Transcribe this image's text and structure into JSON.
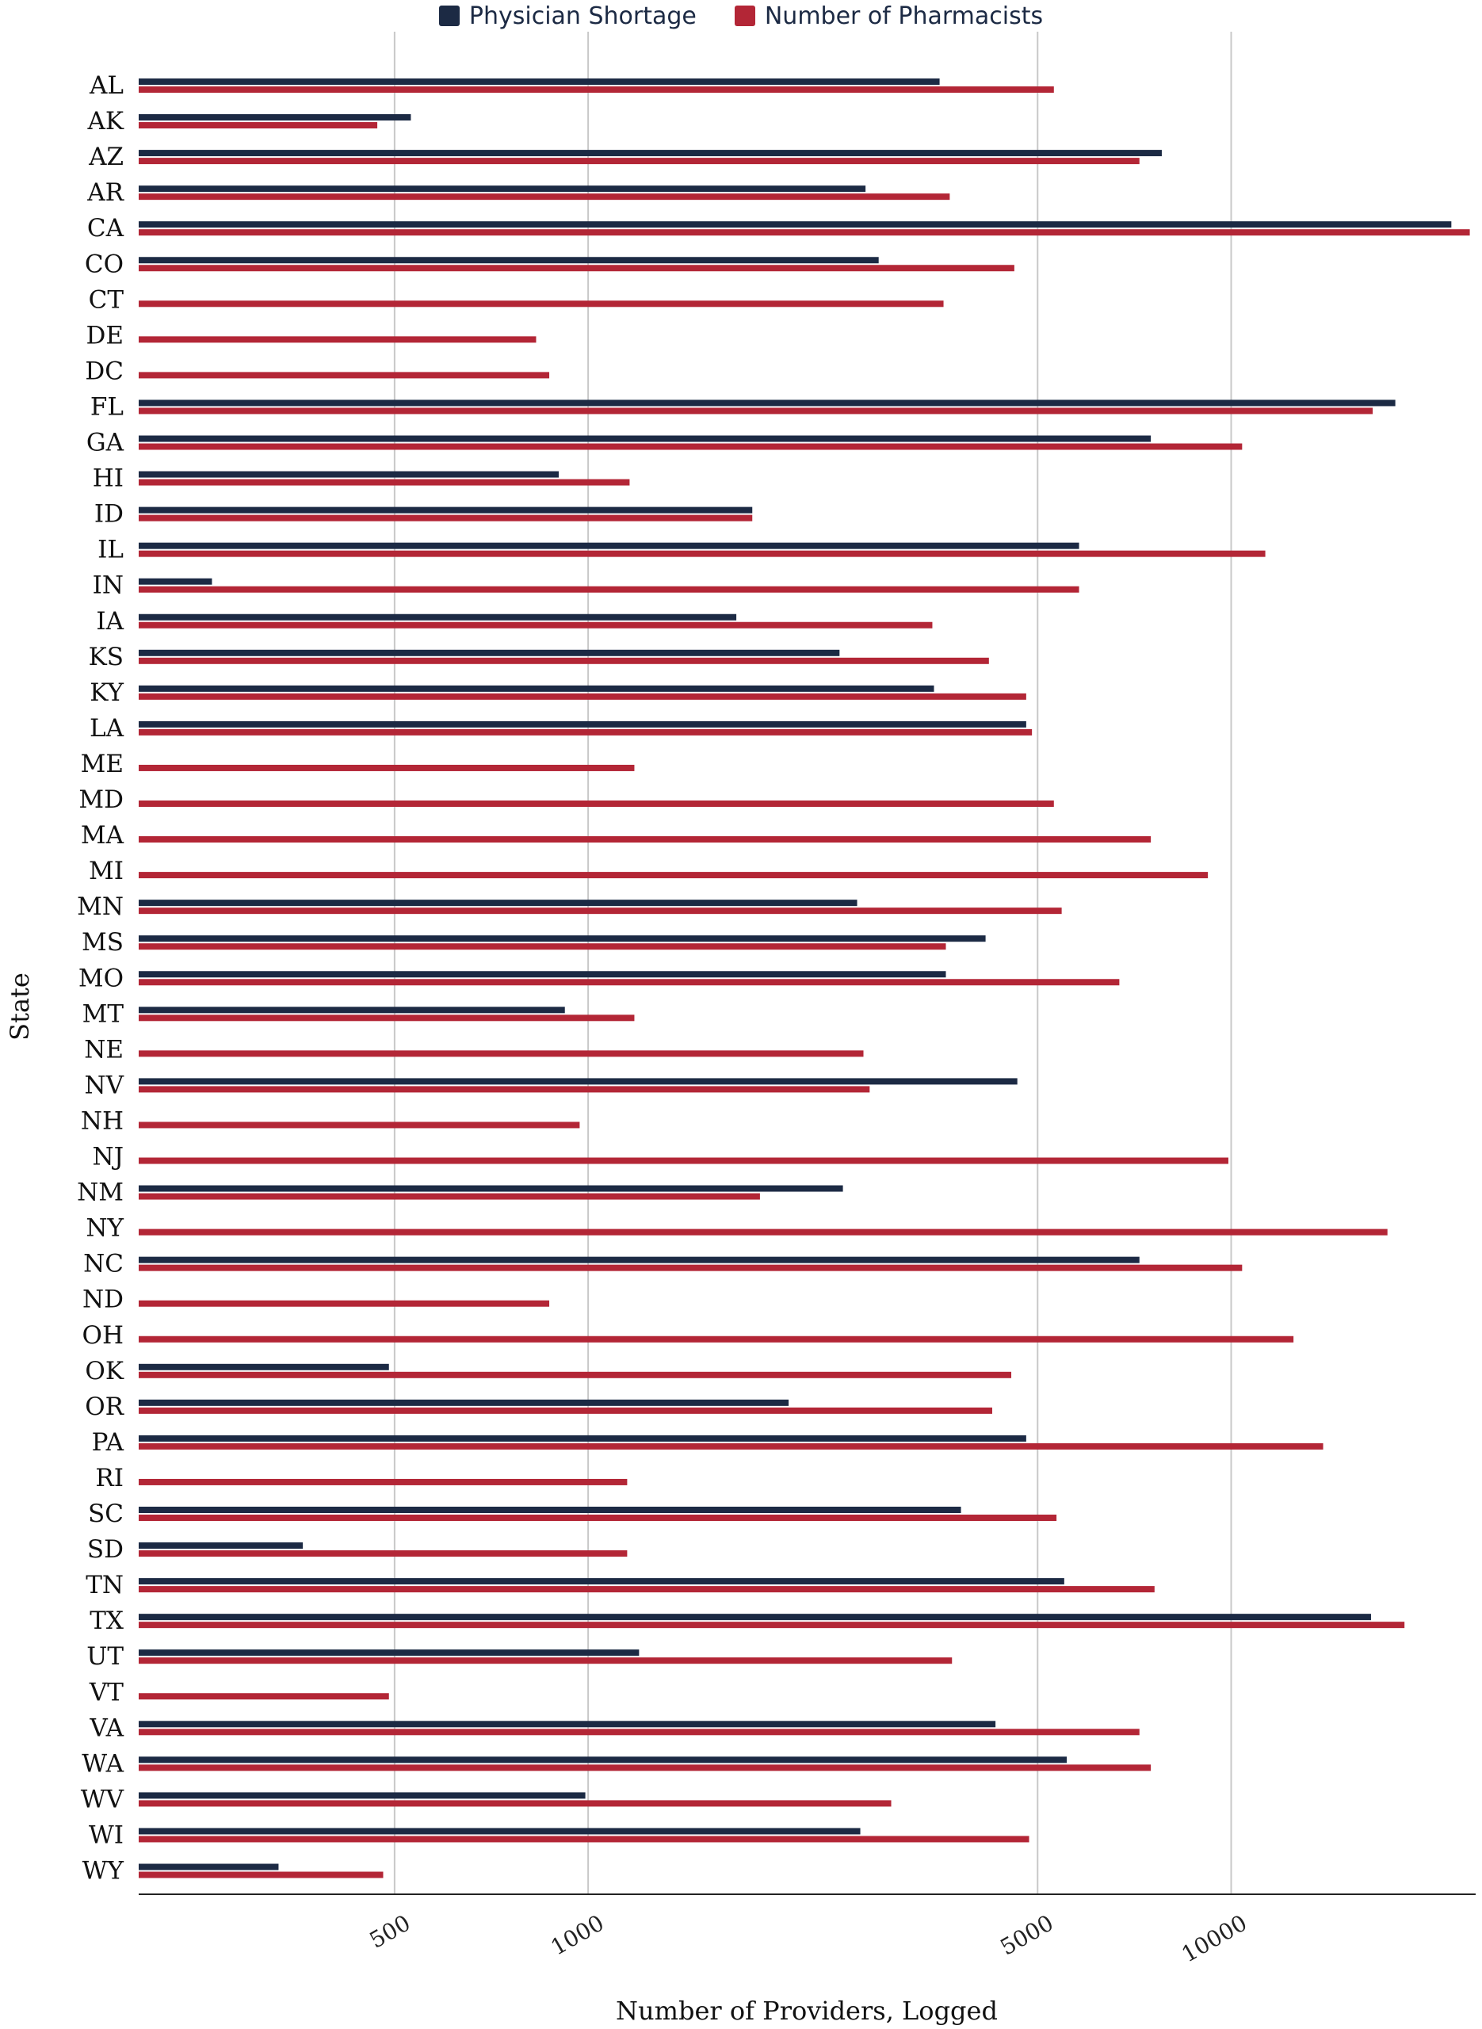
{
  "chart_data": {
    "type": "bar",
    "orientation": "horizontal",
    "title": "",
    "xlabel": "Number of Providers, Logged",
    "ylabel": "State",
    "xscale": "log",
    "xlim": [
      200,
      24000
    ],
    "xticks": [
      500,
      1000,
      5000,
      10000
    ],
    "xtick_labels": [
      "500",
      "1000",
      "5000",
      "10000"
    ],
    "legend_position": "top-center",
    "grid": true,
    "categories": [
      "AL",
      "AK",
      "AZ",
      "AR",
      "CA",
      "CO",
      "CT",
      "DE",
      "DC",
      "FL",
      "GA",
      "HI",
      "ID",
      "IL",
      "IN",
      "IA",
      "KS",
      "KY",
      "LA",
      "ME",
      "MD",
      "MA",
      "MI",
      "MN",
      "MS",
      "MO",
      "MT",
      "NE",
      "NV",
      "NH",
      "NJ",
      "NM",
      "NY",
      "NC",
      "ND",
      "OH",
      "OK",
      "OR",
      "PA",
      "RI",
      "SC",
      "SD",
      "TN",
      "TX",
      "UT",
      "VT",
      "VA",
      "WA",
      "WV",
      "WI",
      "WY"
    ],
    "series": [
      {
        "name": "Physician Shortage",
        "color": "#1c2a44",
        "values": [
          3520,
          530,
          7800,
          2700,
          22000,
          2830,
          null,
          null,
          null,
          18000,
          7500,
          900,
          1800,
          5800,
          260,
          1700,
          2460,
          3450,
          4800,
          null,
          null,
          null,
          null,
          2620,
          4150,
          3600,
          920,
          null,
          4650,
          null,
          null,
          2490,
          null,
          7200,
          null,
          null,
          490,
          2050,
          4800,
          null,
          3800,
          360,
          5500,
          16500,
          1200,
          null,
          4300,
          5550,
          990,
          2650,
          330
        ]
      },
      {
        "name": "Number of Pharmacists",
        "color": "#b32636",
        "values": [
          5300,
          470,
          7200,
          3650,
          23500,
          4600,
          3570,
          830,
          870,
          16600,
          10400,
          1160,
          1800,
          11300,
          5800,
          3430,
          4200,
          4800,
          4900,
          1180,
          5300,
          7500,
          9200,
          5450,
          3600,
          6700,
          1180,
          2680,
          2740,
          970,
          9900,
          1850,
          17500,
          10400,
          870,
          12500,
          4550,
          4250,
          13900,
          1150,
          5350,
          1150,
          7600,
          18600,
          3680,
          490,
          7200,
          7500,
          2960,
          4850,
          480
        ]
      }
    ]
  }
}
